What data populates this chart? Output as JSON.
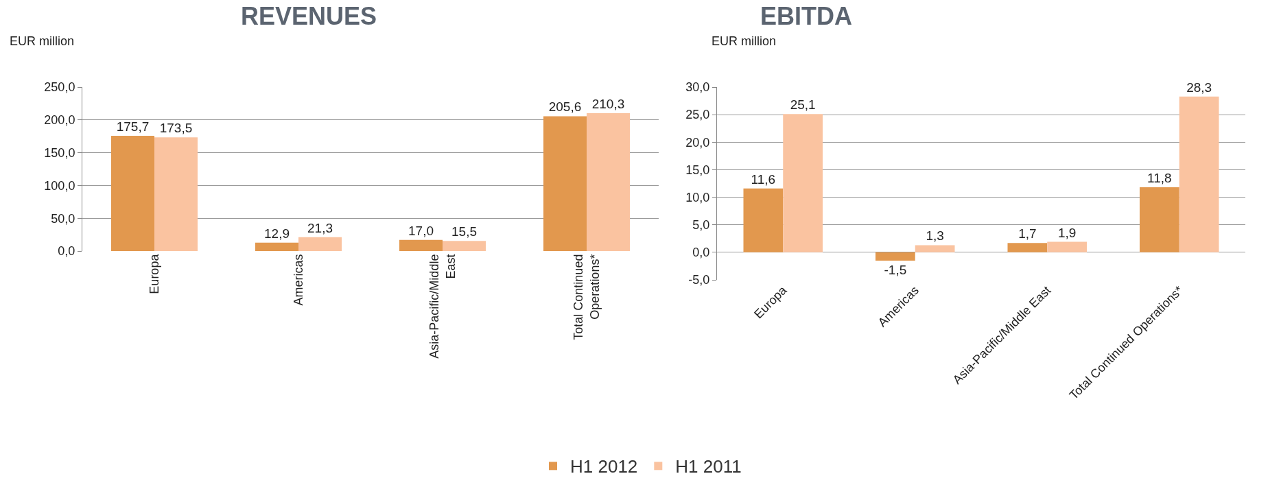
{
  "chart_data": [
    {
      "type": "bar",
      "title": "REVENUES",
      "ylabel": "EUR million",
      "categories": [
        "Europa",
        "Americas",
        "Asia-Pacific/Middle East",
        "Total Continued Operations*"
      ],
      "series": [
        {
          "name": "H1 2012",
          "color": "#e2984e",
          "values": [
            175.7,
            12.9,
            17.0,
            205.6
          ],
          "value_labels": [
            "175,7",
            "12,9",
            "17,0",
            "205,6"
          ]
        },
        {
          "name": "H1 2011",
          "color": "#fac3a0",
          "values": [
            173.5,
            21.3,
            15.5,
            210.3
          ],
          "value_labels": [
            "173,5",
            "21,3",
            "15,5",
            "210,3"
          ]
        }
      ],
      "ylim": [
        0,
        250
      ],
      "yticks": [
        {
          "value": 0,
          "label": "0,0"
        },
        {
          "value": 50,
          "label": "50,0"
        },
        {
          "value": 100,
          "label": "100,0"
        },
        {
          "value": 150,
          "label": "150,0"
        },
        {
          "value": 200,
          "label": "200,0"
        },
        {
          "value": 250,
          "label": "250,0"
        }
      ],
      "grid": "y",
      "legend": "bottom"
    },
    {
      "type": "bar",
      "title": "EBITDA",
      "ylabel": "EUR million",
      "categories": [
        "Europa",
        "Americas",
        "Asia-Pacific/Middle East",
        "Total Continued Operations*"
      ],
      "series": [
        {
          "color": "#e2984e",
          "values": [
            11.6,
            -1.5,
            1.7,
            11.8
          ],
          "value_labels": [
            "11,6",
            "-1,5",
            "1,7",
            "11,8"
          ]
        },
        {
          "color": "#fac3a0",
          "values": [
            25.1,
            1.3,
            1.9,
            28.3
          ],
          "value_labels": [
            "25,1",
            "1,3",
            "1,9",
            "28,3"
          ]
        }
      ],
      "ylim": [
        -5,
        30
      ],
      "yticks": [
        {
          "value": -5,
          "label": "-5,0"
        },
        {
          "value": 0,
          "label": "0,0"
        },
        {
          "value": 5,
          "label": "5,0"
        },
        {
          "value": 10,
          "label": "10,0"
        },
        {
          "value": 15,
          "label": "15,0"
        },
        {
          "value": 20,
          "label": "20,0"
        },
        {
          "value": 25,
          "label": "25,0"
        },
        {
          "value": 30,
          "label": "30,0"
        }
      ],
      "grid": "y"
    }
  ]
}
